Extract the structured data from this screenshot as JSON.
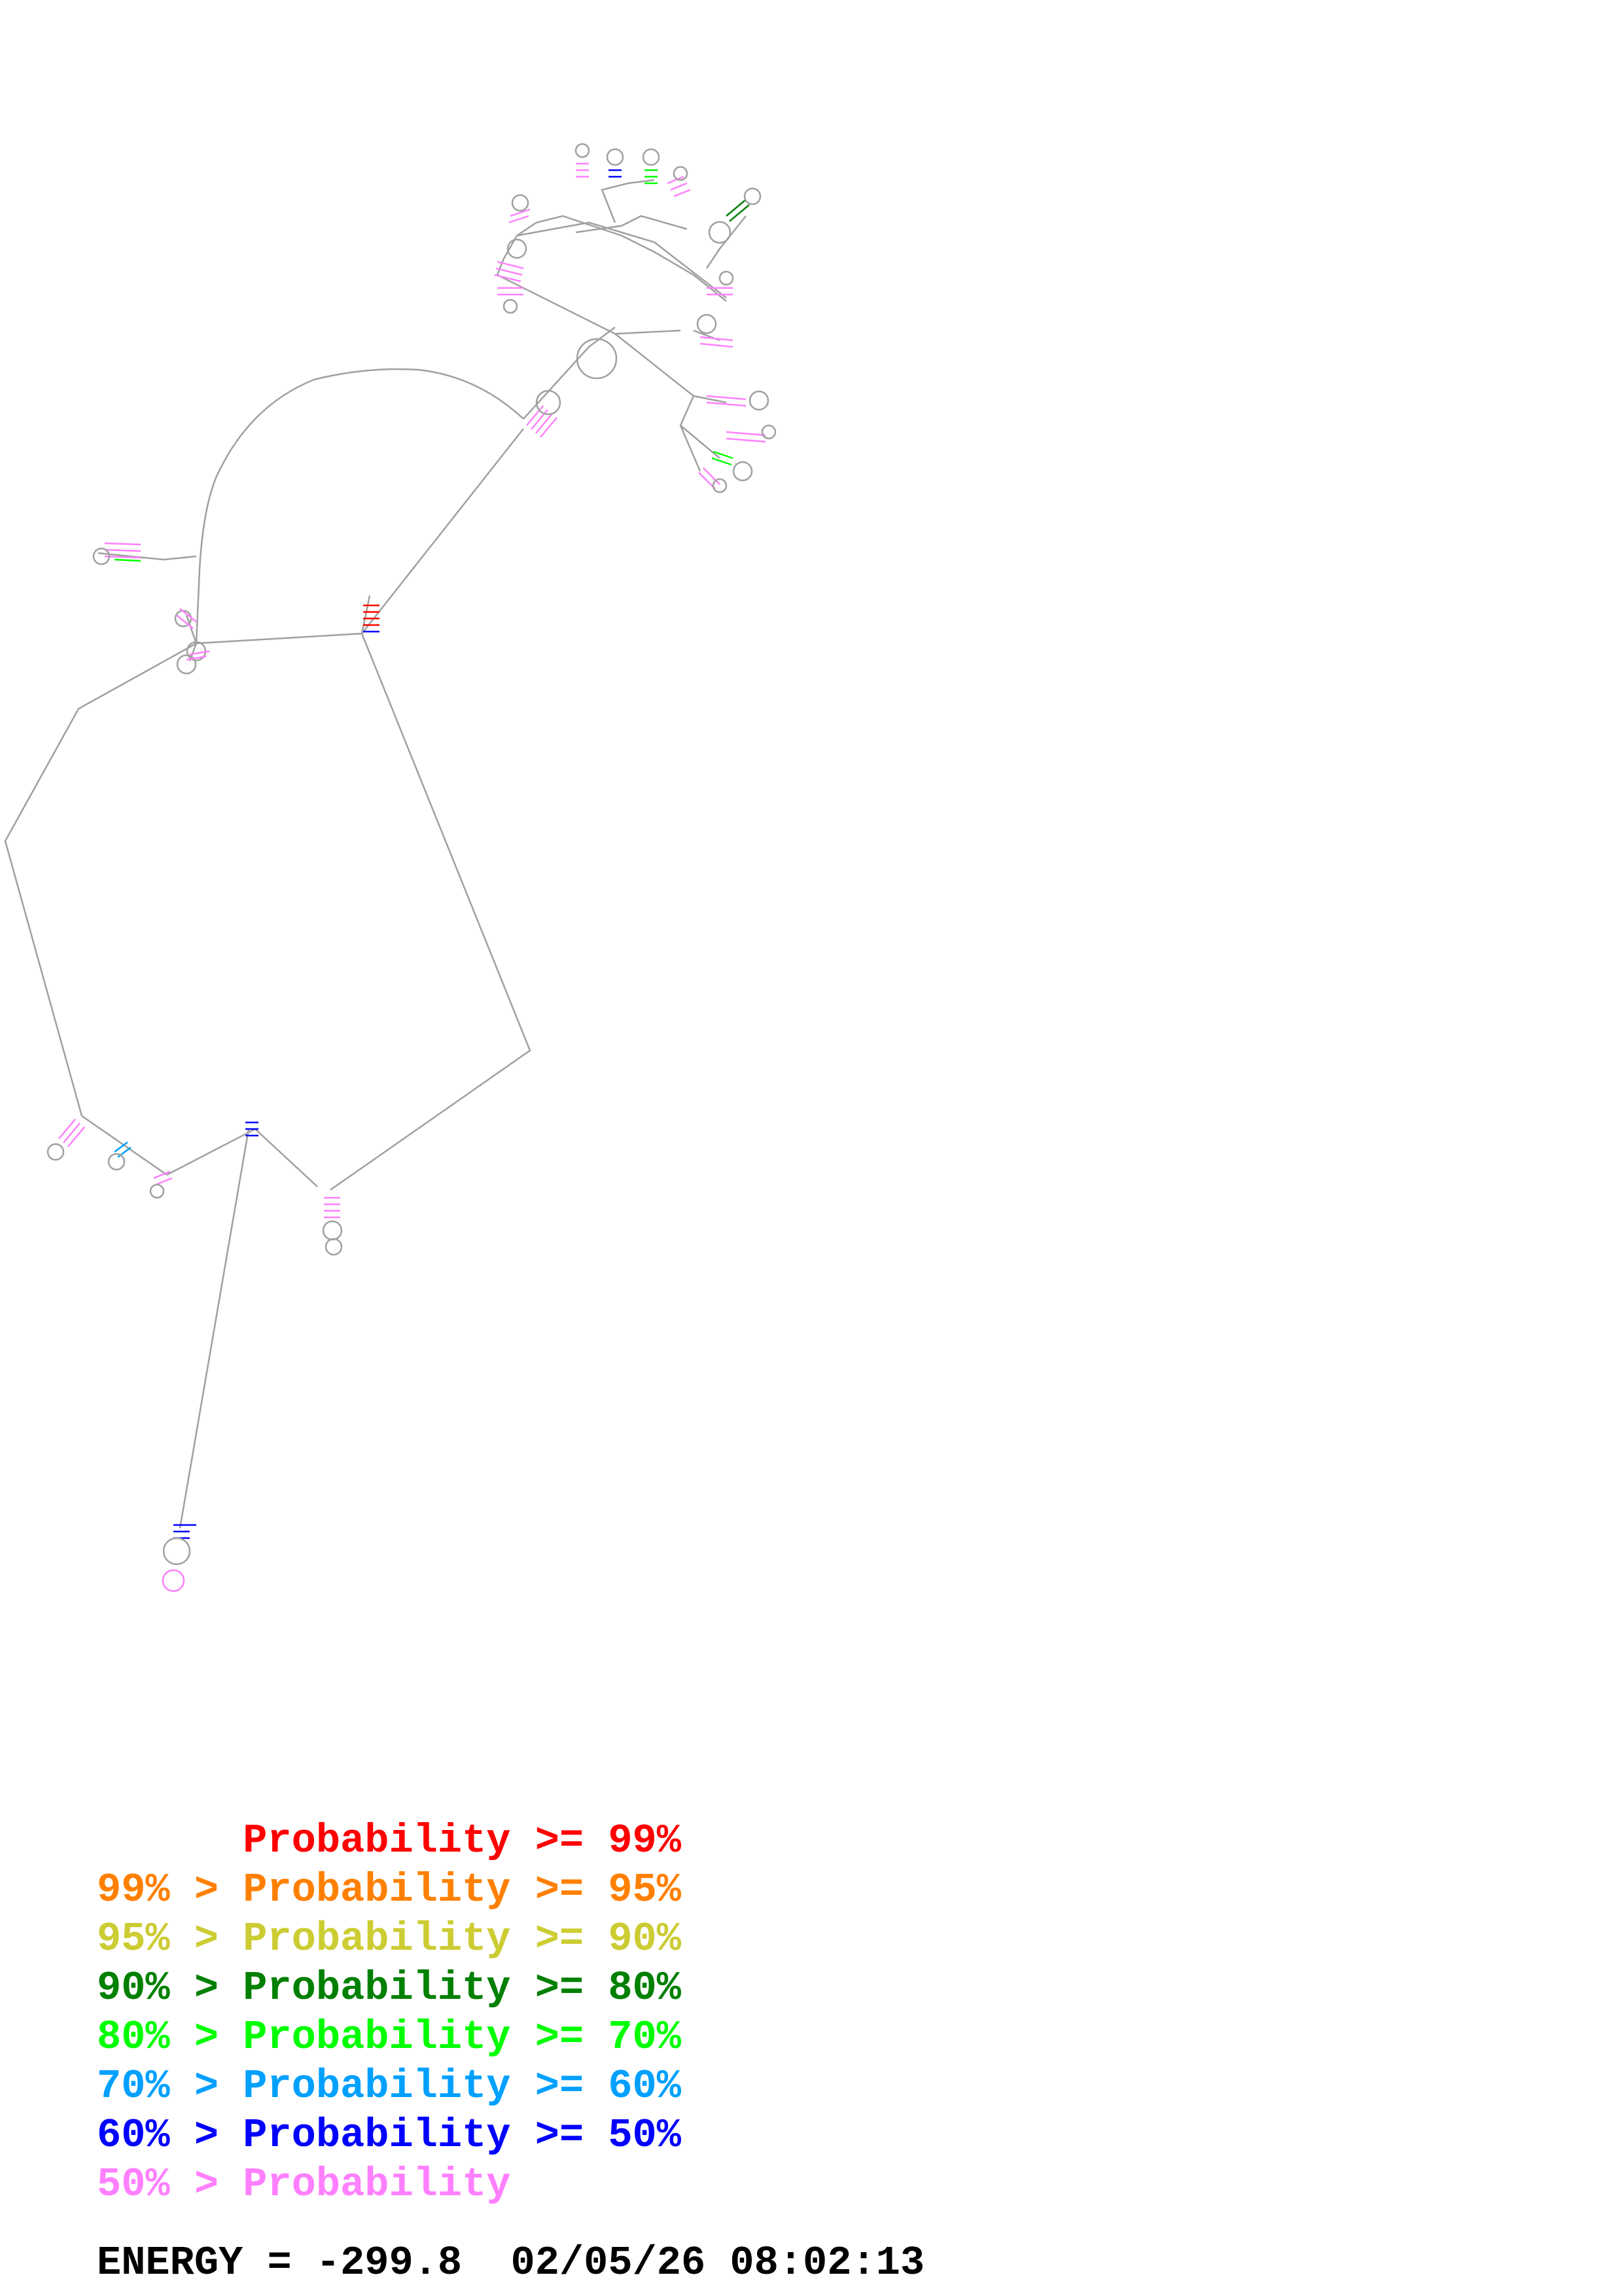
{
  "legend": {
    "rows": [
      {
        "prefix": "",
        "label": "Probability",
        "suffix": ">= 99%",
        "color": "#ff0000"
      },
      {
        "prefix": "99% >",
        "label": "Probability",
        "suffix": ">= 95%",
        "color": "#ff8000"
      },
      {
        "prefix": "95% >",
        "label": "Probability",
        "suffix": ">= 90%",
        "color": "#cccc33"
      },
      {
        "prefix": "90% >",
        "label": "Probability",
        "suffix": ">= 80%",
        "color": "#008000"
      },
      {
        "prefix": "80% >",
        "label": "Probability",
        "suffix": ">= 70%",
        "color": "#00ff00"
      },
      {
        "prefix": "70% >",
        "label": "Probability",
        "suffix": ">= 60%",
        "color": "#00a0ff"
      },
      {
        "prefix": "60% >",
        "label": "Probability",
        "suffix": ">= 50%",
        "color": "#0000ff"
      },
      {
        "prefix": "50% >",
        "label": "Probability",
        "suffix": "",
        "color": "#ff80ff"
      }
    ]
  },
  "energy": {
    "label": "ENERGY =",
    "value": "-299.8",
    "timestamp": "02/05/26 08:02:13"
  },
  "colors": {
    "backbone": "#a0a0a0",
    "text": "#000000"
  }
}
